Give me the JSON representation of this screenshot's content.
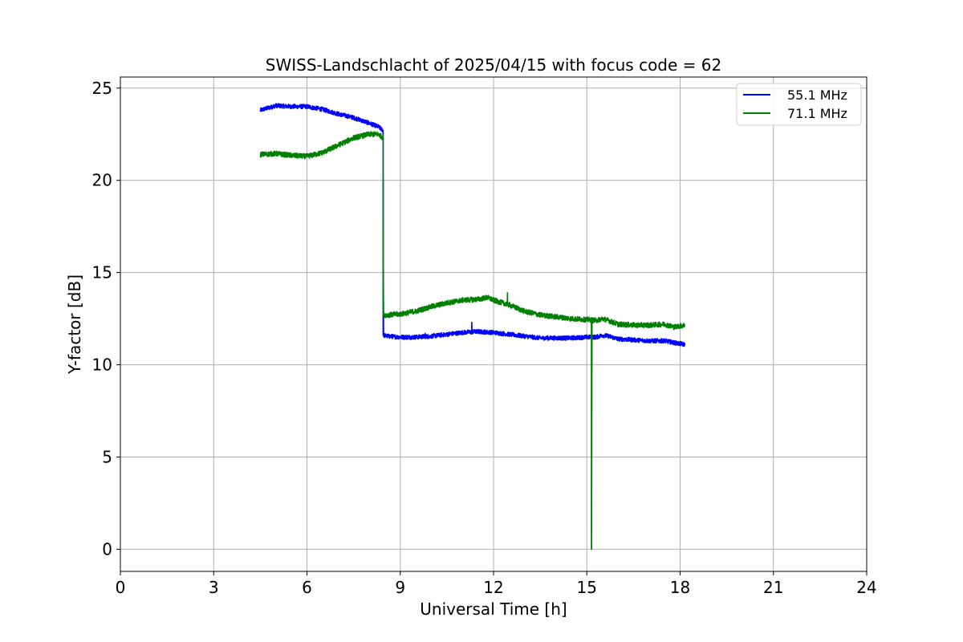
{
  "chart_data": {
    "type": "line",
    "title": "SWISS-Landschlacht of 2025/04/15 with focus code = 62",
    "xlabel": "Universal Time [h]",
    "ylabel": "Y-factor [dB]",
    "xlim": [
      0,
      24
    ],
    "ylim": [
      -1.2,
      25.6
    ],
    "xticks": [
      0,
      3,
      6,
      9,
      12,
      15,
      18,
      21,
      24
    ],
    "yticks": [
      0,
      5,
      10,
      15,
      20,
      25
    ],
    "grid": true,
    "legend_position": "top-right",
    "series": [
      {
        "name": "55.1 MHz",
        "color": "#0000ff",
        "noise": 0.12,
        "points": [
          [
            4.5,
            23.8
          ],
          [
            4.8,
            23.95
          ],
          [
            5.0,
            24.05
          ],
          [
            5.5,
            24.0
          ],
          [
            6.0,
            24.0
          ],
          [
            6.5,
            23.85
          ],
          [
            7.0,
            23.6
          ],
          [
            7.5,
            23.4
          ],
          [
            8.0,
            23.1
          ],
          [
            8.3,
            22.9
          ],
          [
            8.45,
            22.7
          ],
          [
            8.46,
            11.6
          ],
          [
            8.6,
            11.55
          ],
          [
            9.0,
            11.5
          ],
          [
            9.5,
            11.5
          ],
          [
            10.0,
            11.55
          ],
          [
            10.5,
            11.65
          ],
          [
            11.0,
            11.75
          ],
          [
            11.5,
            11.8
          ],
          [
            12.0,
            11.75
          ],
          [
            12.5,
            11.65
          ],
          [
            13.0,
            11.55
          ],
          [
            13.5,
            11.45
          ],
          [
            14.0,
            11.45
          ],
          [
            14.5,
            11.45
          ],
          [
            15.0,
            11.5
          ],
          [
            15.3,
            11.5
          ],
          [
            15.5,
            11.6
          ],
          [
            15.7,
            11.55
          ],
          [
            16.0,
            11.4
          ],
          [
            16.5,
            11.35
          ],
          [
            17.0,
            11.3
          ],
          [
            17.5,
            11.3
          ],
          [
            17.8,
            11.2
          ],
          [
            18.15,
            11.1
          ]
        ],
        "spikes": [
          [
            11.3,
            12.3
          ],
          [
            9.8,
            11.7
          ]
        ]
      },
      {
        "name": "71.1 MHz",
        "color": "#008000",
        "noise": 0.14,
        "points": [
          [
            4.5,
            21.4
          ],
          [
            5.0,
            21.45
          ],
          [
            5.5,
            21.35
          ],
          [
            6.0,
            21.3
          ],
          [
            6.5,
            21.5
          ],
          [
            7.0,
            21.9
          ],
          [
            7.5,
            22.3
          ],
          [
            8.0,
            22.5
          ],
          [
            8.3,
            22.5
          ],
          [
            8.45,
            22.3
          ],
          [
            8.46,
            12.7
          ],
          [
            8.6,
            12.7
          ],
          [
            9.0,
            12.75
          ],
          [
            9.5,
            12.9
          ],
          [
            10.0,
            13.15
          ],
          [
            10.5,
            13.35
          ],
          [
            11.0,
            13.5
          ],
          [
            11.5,
            13.55
          ],
          [
            11.8,
            13.65
          ],
          [
            12.0,
            13.5
          ],
          [
            12.5,
            13.25
          ],
          [
            13.0,
            12.9
          ],
          [
            13.5,
            12.7
          ],
          [
            14.0,
            12.6
          ],
          [
            14.5,
            12.5
          ],
          [
            15.0,
            12.45
          ],
          [
            15.3,
            12.4
          ],
          [
            15.5,
            12.5
          ],
          [
            15.7,
            12.4
          ],
          [
            16.0,
            12.2
          ],
          [
            16.5,
            12.15
          ],
          [
            17.0,
            12.15
          ],
          [
            17.5,
            12.2
          ],
          [
            17.8,
            12.05
          ],
          [
            18.15,
            12.15
          ]
        ],
        "spikes": [
          [
            12.45,
            13.9
          ]
        ],
        "dropouts": [
          [
            15.15,
            0.0
          ]
        ]
      }
    ]
  }
}
